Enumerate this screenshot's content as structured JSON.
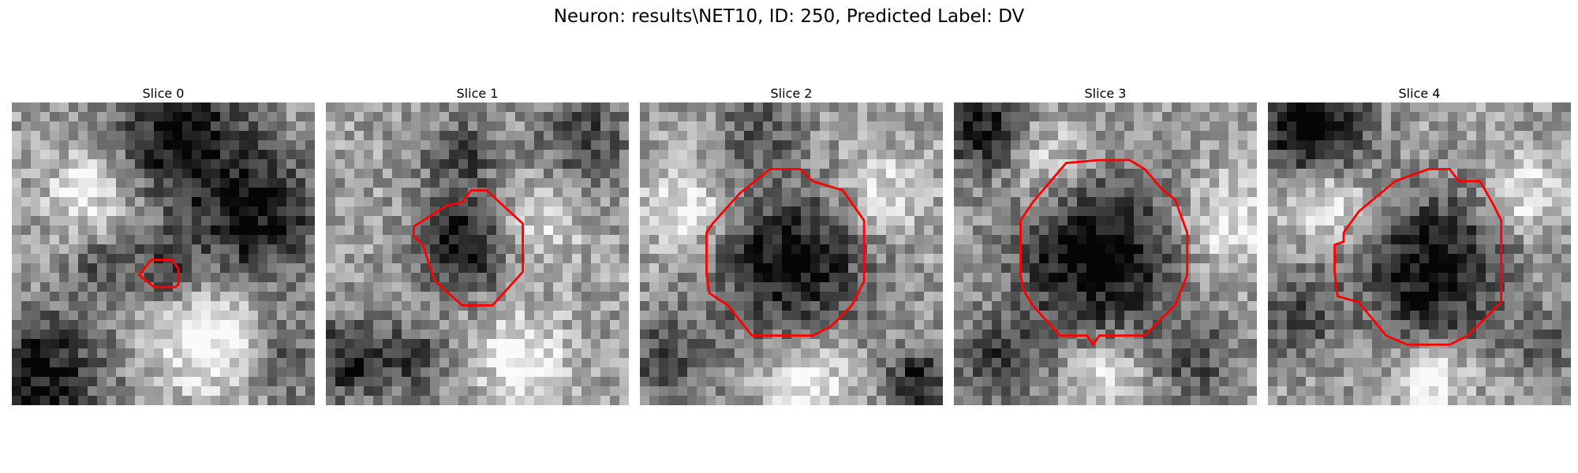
{
  "figure": {
    "title": "Neuron: results\\NET10, ID: 250, Predicted Label: DV"
  },
  "panels": [
    {
      "title": "Slice 0",
      "seed": 11,
      "blobs": [
        [
          0.55,
          0.1,
          0.15,
          -1.0
        ],
        [
          0.8,
          0.38,
          0.16,
          -1.0
        ],
        [
          0.1,
          0.9,
          0.15,
          -1.0
        ],
        [
          0.5,
          0.55,
          0.08,
          -0.6
        ],
        [
          0.3,
          0.55,
          0.08,
          -0.5
        ],
        [
          0.25,
          0.3,
          0.09,
          0.6
        ],
        [
          0.65,
          0.78,
          0.12,
          0.8
        ],
        [
          0.9,
          0.85,
          0.1,
          -0.5
        ]
      ],
      "outline": [
        [
          0.42,
          0.57
        ],
        [
          0.46,
          0.52
        ],
        [
          0.53,
          0.52
        ],
        [
          0.55,
          0.55
        ],
        [
          0.55,
          0.6
        ],
        [
          0.54,
          0.61
        ],
        [
          0.47,
          0.61
        ]
      ]
    },
    {
      "title": "Slice 1",
      "seed": 23,
      "blobs": [
        [
          0.45,
          0.48,
          0.1,
          -1.1
        ],
        [
          0.45,
          0.18,
          0.1,
          -0.6
        ],
        [
          0.85,
          0.12,
          0.1,
          -0.7
        ],
        [
          0.08,
          0.85,
          0.1,
          -0.9
        ],
        [
          0.3,
          0.85,
          0.08,
          -0.6
        ],
        [
          0.65,
          0.85,
          0.1,
          0.7
        ],
        [
          0.7,
          0.4,
          0.1,
          0.4
        ]
      ],
      "outline": [
        [
          0.4,
          0.34
        ],
        [
          0.45,
          0.33
        ],
        [
          0.48,
          0.29
        ],
        [
          0.53,
          0.29
        ],
        [
          0.65,
          0.4
        ],
        [
          0.65,
          0.56
        ],
        [
          0.55,
          0.67
        ],
        [
          0.45,
          0.67
        ],
        [
          0.36,
          0.59
        ],
        [
          0.32,
          0.47
        ],
        [
          0.29,
          0.44
        ],
        [
          0.29,
          0.41
        ]
      ]
    },
    {
      "title": "Slice 2",
      "seed": 37,
      "blobs": [
        [
          0.5,
          0.53,
          0.17,
          -1.1
        ],
        [
          0.4,
          0.08,
          0.1,
          -0.5
        ],
        [
          0.08,
          0.85,
          0.12,
          -0.6
        ],
        [
          0.92,
          0.92,
          0.08,
          -0.9
        ],
        [
          0.15,
          0.35,
          0.1,
          0.6
        ],
        [
          0.8,
          0.3,
          0.1,
          0.5
        ],
        [
          0.55,
          0.92,
          0.1,
          0.7
        ]
      ],
      "outline": [
        [
          0.33,
          0.3
        ],
        [
          0.43,
          0.22
        ],
        [
          0.53,
          0.22
        ],
        [
          0.57,
          0.26
        ],
        [
          0.67,
          0.29
        ],
        [
          0.74,
          0.39
        ],
        [
          0.74,
          0.59
        ],
        [
          0.72,
          0.63
        ],
        [
          0.7,
          0.67
        ],
        [
          0.63,
          0.74
        ],
        [
          0.57,
          0.77
        ],
        [
          0.37,
          0.77
        ],
        [
          0.29,
          0.67
        ],
        [
          0.23,
          0.63
        ],
        [
          0.22,
          0.57
        ],
        [
          0.22,
          0.43
        ],
        [
          0.24,
          0.4
        ]
      ]
    },
    {
      "title": "Slice 3",
      "seed": 53,
      "blobs": [
        [
          0.47,
          0.51,
          0.18,
          -1.2
        ],
        [
          0.1,
          0.1,
          0.1,
          -1.0
        ],
        [
          0.15,
          0.85,
          0.1,
          -0.7
        ],
        [
          0.8,
          0.85,
          0.1,
          -0.6
        ],
        [
          0.9,
          0.4,
          0.1,
          0.6
        ],
        [
          0.3,
          0.2,
          0.1,
          0.5
        ],
        [
          0.5,
          0.9,
          0.08,
          0.6
        ]
      ],
      "outline": [
        [
          0.37,
          0.2
        ],
        [
          0.48,
          0.19
        ],
        [
          0.58,
          0.19
        ],
        [
          0.63,
          0.22
        ],
        [
          0.69,
          0.29
        ],
        [
          0.73,
          0.32
        ],
        [
          0.77,
          0.43
        ],
        [
          0.77,
          0.57
        ],
        [
          0.73,
          0.67
        ],
        [
          0.67,
          0.73
        ],
        [
          0.63,
          0.77
        ],
        [
          0.48,
          0.77
        ],
        [
          0.46,
          0.8
        ],
        [
          0.44,
          0.77
        ],
        [
          0.35,
          0.77
        ],
        [
          0.26,
          0.67
        ],
        [
          0.23,
          0.62
        ],
        [
          0.22,
          0.57
        ],
        [
          0.22,
          0.39
        ],
        [
          0.26,
          0.33
        ]
      ]
    },
    {
      "title": "Slice 4",
      "seed": 71,
      "blobs": [
        [
          0.55,
          0.55,
          0.17,
          -1.1
        ],
        [
          0.15,
          0.08,
          0.12,
          -1.3
        ],
        [
          0.1,
          0.7,
          0.1,
          -0.6
        ],
        [
          0.92,
          0.8,
          0.08,
          -0.5
        ],
        [
          0.2,
          0.33,
          0.09,
          0.7
        ],
        [
          0.85,
          0.3,
          0.09,
          0.6
        ],
        [
          0.55,
          0.9,
          0.08,
          0.7
        ]
      ],
      "outline": [
        [
          0.3,
          0.36
        ],
        [
          0.42,
          0.26
        ],
        [
          0.53,
          0.22
        ],
        [
          0.6,
          0.22
        ],
        [
          0.63,
          0.26
        ],
        [
          0.7,
          0.26
        ],
        [
          0.74,
          0.33
        ],
        [
          0.77,
          0.39
        ],
        [
          0.77,
          0.66
        ],
        [
          0.73,
          0.7
        ],
        [
          0.66,
          0.77
        ],
        [
          0.6,
          0.8
        ],
        [
          0.46,
          0.8
        ],
        [
          0.39,
          0.77
        ],
        [
          0.3,
          0.66
        ],
        [
          0.23,
          0.64
        ],
        [
          0.22,
          0.56
        ],
        [
          0.22,
          0.47
        ],
        [
          0.25,
          0.46
        ],
        [
          0.25,
          0.43
        ]
      ]
    }
  ]
}
